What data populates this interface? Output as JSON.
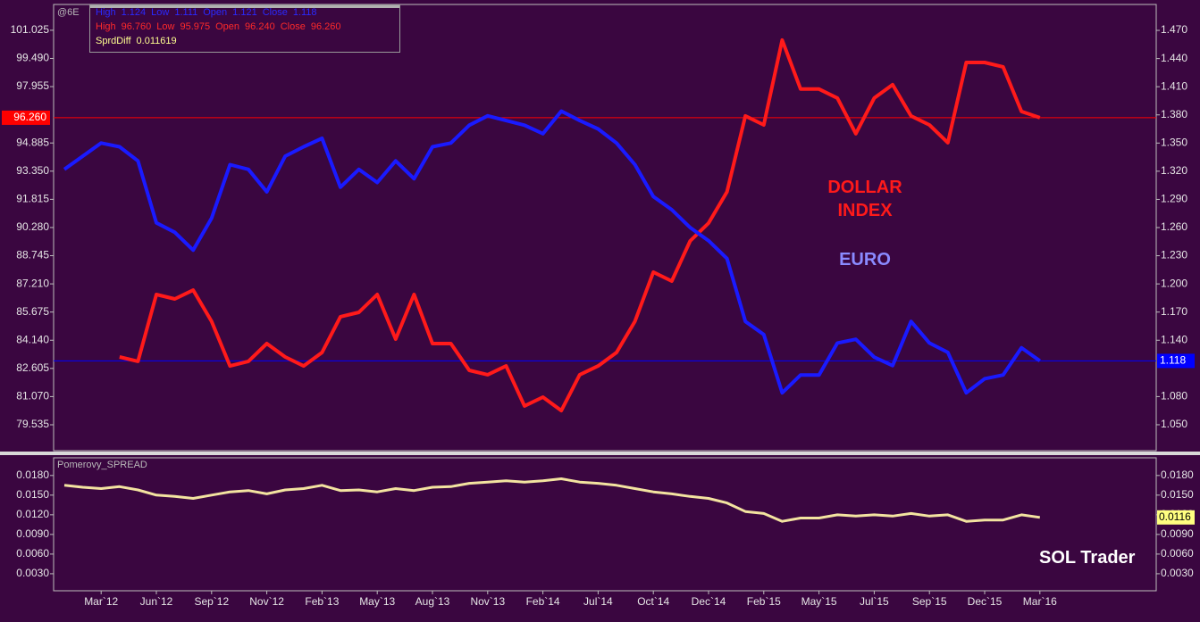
{
  "chart_data": [
    {
      "type": "line",
      "label": "@6E",
      "info": [
        {
          "color": "#2a2aff",
          "items": [
            "High",
            "1.124",
            "Low",
            "1.111",
            "Open",
            "1.121",
            "Close",
            "1.118"
          ]
        },
        {
          "color": "#ff2a2a",
          "items": [
            "High",
            "96.760",
            "Low",
            "95.975",
            "Open",
            "96.240",
            "Close",
            "96.260"
          ]
        },
        {
          "color": "#ffff90",
          "items": [
            "SprdDiff",
            "0.011619"
          ]
        }
      ],
      "ylim": [
        78.125,
        102.43
      ],
      "yticks": [
        101.025,
        {
          "value": 99.49,
          "label": "99.490"
        },
        97.955,
        94.885,
        {
          "value": 93.35,
          "label": "93.350"
        },
        91.815,
        {
          "value": 90.28,
          "label": "90.280"
        },
        88.745,
        {
          "value": 87.21,
          "label": "87.210"
        },
        85.675,
        {
          "value": 84.14,
          "label": "84.140"
        },
        82.605,
        {
          "value": 81.07,
          "label": "81.070"
        },
        79.535
      ],
      "y2lim": [
        1.0224,
        1.4976
      ],
      "y2ticks": [
        {
          "value": 1.47,
          "label": "1.470"
        },
        {
          "value": 1.44,
          "label": "1.440"
        },
        {
          "value": 1.41,
          "label": "1.410"
        },
        {
          "value": 1.38,
          "label": "1.380"
        },
        {
          "value": 1.35,
          "label": "1.350"
        },
        {
          "value": 1.32,
          "label": "1.320"
        },
        {
          "value": 1.29,
          "label": "1.290"
        },
        {
          "value": 1.26,
          "label": "1.260"
        },
        {
          "value": 1.23,
          "label": "1.230"
        },
        {
          "value": 1.2,
          "label": "1.200"
        },
        {
          "value": 1.17,
          "label": "1.170"
        },
        {
          "value": 1.14,
          "label": "1.140"
        },
        {
          "value": 1.08,
          "label": "1.080"
        },
        {
          "value": 1.05,
          "label": "1.050"
        }
      ],
      "series": [
        {
          "name": "DOLLAR INDEX",
          "color": "#ff1a1a",
          "axis": "y",
          "values": [
            null,
            null,
            null,
            83.23,
            82.99,
            86.63,
            86.39,
            86.87,
            85.17,
            82.74,
            82.99,
            83.96,
            83.23,
            82.74,
            83.47,
            85.42,
            85.66,
            86.63,
            84.2,
            86.63,
            83.96,
            83.96,
            82.5,
            82.26,
            82.74,
            80.56,
            81.04,
            80.31,
            82.26,
            82.74,
            83.47,
            85.17,
            87.85,
            87.36,
            89.55,
            90.52,
            92.22,
            96.36,
            95.87,
            100.49,
            97.82,
            97.82,
            97.33,
            95.39,
            97.33,
            98.06,
            96.36,
            95.87,
            94.9,
            99.27,
            99.27,
            99.03,
            96.6,
            96.26
          ]
        },
        {
          "name": "EURO",
          "color": "#1a1aff",
          "axis": "y2",
          "values": [
            1.322,
            1.336,
            1.35,
            1.346,
            1.331,
            1.265,
            1.255,
            1.236,
            1.27,
            1.327,
            1.322,
            1.298,
            1.336,
            1.346,
            1.355,
            1.303,
            1.322,
            1.308,
            1.331,
            1.312,
            1.346,
            1.35,
            1.369,
            1.379,
            1.374,
            1.369,
            1.36,
            1.384,
            1.374,
            1.365,
            1.35,
            1.327,
            1.293,
            1.279,
            1.26,
            1.246,
            1.227,
            1.16,
            1.146,
            1.084,
            1.103,
            1.103,
            1.137,
            1.141,
            1.122,
            1.113,
            1.16,
            1.137,
            1.127,
            1.084,
            1.099,
            1.103,
            1.132,
            1.118
          ]
        }
      ],
      "price_lines": [
        {
          "value": 96.26,
          "label": "96.260",
          "axis": "y",
          "color": "#ff0000"
        },
        {
          "value": 1.118,
          "label": "1.118",
          "axis": "y2",
          "color": "#0000ff"
        }
      ]
    },
    {
      "type": "line",
      "title": "Pomerovy_SPREAD",
      "annotation": "SOL Trader",
      "categories": [
        null,
        null,
        "Mar`12",
        null,
        null,
        "Jun`12",
        null,
        null,
        "Sep`12",
        null,
        null,
        "Nov`12",
        null,
        null,
        "Feb`13",
        null,
        null,
        "May`13",
        null,
        null,
        "Aug`13",
        null,
        null,
        "Nov`13",
        null,
        null,
        "Feb`14",
        null,
        null,
        "Jul`14",
        null,
        null,
        "Oct`14",
        null,
        null,
        "Dec`14",
        null,
        null,
        "Feb`15",
        null,
        null,
        "May`15",
        null,
        null,
        "Jul`15",
        null,
        null,
        "Sep`15",
        null,
        null,
        "Dec`15",
        null,
        null,
        "Mar`16"
      ],
      "color": "#f3e3a0",
      "values": [
        0.0165,
        0.0162,
        0.016,
        0.0163,
        0.0158,
        0.015,
        0.0148,
        0.0145,
        0.015,
        0.0155,
        0.0157,
        0.0152,
        0.0158,
        0.016,
        0.0165,
        0.0157,
        0.0158,
        0.0155,
        0.016,
        0.0157,
        0.0162,
        0.0163,
        0.0168,
        0.017,
        0.0172,
        0.017,
        0.0172,
        0.0175,
        0.017,
        0.0168,
        0.0165,
        0.016,
        0.0155,
        0.0152,
        0.0148,
        0.0145,
        0.0138,
        0.0125,
        0.0122,
        0.011,
        0.0115,
        0.0115,
        0.012,
        0.0118,
        0.012,
        0.0118,
        0.0122,
        0.0118,
        0.012,
        0.011,
        0.0112,
        0.0112,
        0.012,
        0.0116
      ],
      "ylim": [
        0.0004,
        0.0207
      ],
      "yticks": [
        {
          "value": 0.018,
          "label": "0.0180"
        },
        {
          "value": 0.015,
          "label": "0.0150"
        },
        {
          "value": 0.012,
          "label": "0.0120"
        },
        {
          "value": 0.009,
          "label": "0.0090"
        },
        {
          "value": 0.006,
          "label": "0.0060"
        },
        {
          "value": 0.003,
          "label": "0.0030"
        }
      ],
      "price_lines": [
        {
          "value": 0.0116,
          "label": "0.0116",
          "color": "#ffff80"
        }
      ]
    }
  ]
}
